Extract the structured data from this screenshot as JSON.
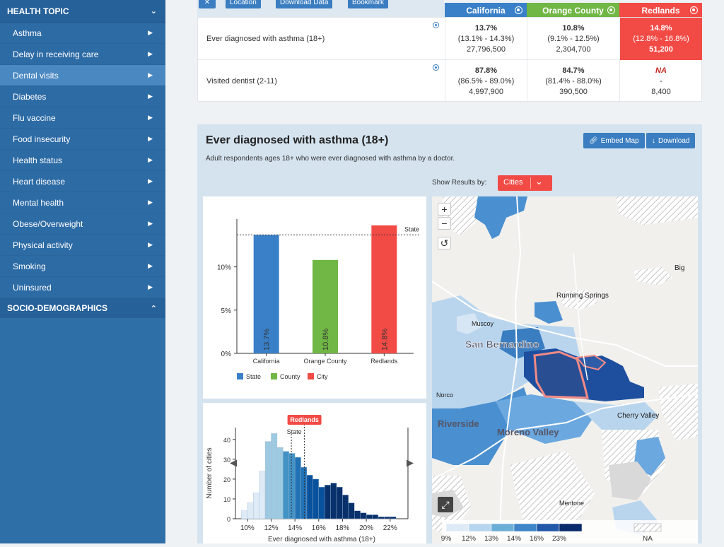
{
  "sidebar": {
    "header": "HEALTH TOPIC",
    "items": [
      {
        "label": "Asthma"
      },
      {
        "label": "Delay in receiving care"
      },
      {
        "label": "Dental visits",
        "active": true
      },
      {
        "label": "Diabetes"
      },
      {
        "label": "Flu vaccine"
      },
      {
        "label": "Food insecurity"
      },
      {
        "label": "Health status"
      },
      {
        "label": "Heart disease"
      },
      {
        "label": "Mental health"
      },
      {
        "label": "Obese/Overweight"
      },
      {
        "label": "Physical activity"
      },
      {
        "label": "Smoking"
      },
      {
        "label": "Uninsured"
      }
    ],
    "header2": "SOCIO-DEMOGRAPHICS"
  },
  "toolbar": {
    "close_label": "✕",
    "location_label": "Location",
    "download_data_label": "Download Data",
    "bookmark_label": "Bookmark"
  },
  "locations": [
    {
      "name": "California",
      "color": "#3a80c8"
    },
    {
      "name": "Orange County",
      "color": "#71b745"
    },
    {
      "name": "Redlands",
      "color": "#f24b46"
    }
  ],
  "compare_rows": [
    {
      "label": "Ever diagnosed with asthma (18+)",
      "cells": [
        {
          "value": "13.7%",
          "ci": "(13.1% - 14.3%)",
          "pop": "27,796,500"
        },
        {
          "value": "10.8%",
          "ci": "(9.1% - 12.5%)",
          "pop": "2,304,700"
        },
        {
          "value": "14.8%",
          "ci": "(12.8% - 16.8%)",
          "pop": "51,200"
        }
      ]
    },
    {
      "label": "Visited dentist (2-11)",
      "cells": [
        {
          "value": "87.8%",
          "ci": "(86.5% - 89.0%)",
          "pop": "4,997,900"
        },
        {
          "value": "84.7%",
          "ci": "(81.4% - 88.0%)",
          "pop": "390,500"
        },
        {
          "value": "NA",
          "ci": "-",
          "pop": "8,400"
        }
      ]
    }
  ],
  "panel": {
    "title": "Ever diagnosed with asthma (18+)",
    "description": "Adult respondents ages 18+ who were ever diagnosed with asthma by a doctor.",
    "embed_label": "Embed Map",
    "download_label": "Download",
    "show_results_label": "Show Results by:",
    "show_results_value": "Cities"
  },
  "chart_data": [
    {
      "type": "bar",
      "categories": [
        "California",
        "Orange County",
        "Redlands"
      ],
      "values": [
        13.7,
        10.8,
        14.8
      ],
      "value_labels": [
        "13.7%",
        "10.8%",
        "14.8%"
      ],
      "colors": [
        "#3a80c8",
        "#71b745",
        "#f24b46"
      ],
      "yticks": [
        "0%",
        "5%",
        "10%"
      ],
      "ylim": [
        0,
        15.2
      ],
      "reference_line": {
        "label": "State",
        "value": 13.7
      },
      "legend": [
        {
          "label": "State",
          "color": "#3a80c8"
        },
        {
          "label": "County",
          "color": "#71b745"
        },
        {
          "label": "City",
          "color": "#f24b46"
        }
      ],
      "legend_position": "bottom"
    },
    {
      "type": "bar",
      "xlabel": "Ever diagnosed with asthma (18+)",
      "ylabel": "Number of cities",
      "xticks": [
        "10%",
        "12%",
        "14%",
        "16%",
        "18%",
        "20%",
        "22%"
      ],
      "xlim": [
        9,
        23.5
      ],
      "yticks": [
        "0",
        "10",
        "20",
        "30",
        "40"
      ],
      "ylim": [
        0,
        46
      ],
      "bins": [
        {
          "x0": 9.0,
          "x1": 9.5,
          "count": 0
        },
        {
          "x0": 9.5,
          "x1": 10.0,
          "count": 4
        },
        {
          "x0": 10.0,
          "x1": 10.5,
          "count": 8
        },
        {
          "x0": 10.5,
          "x1": 11.0,
          "count": 13
        },
        {
          "x0": 11.0,
          "x1": 11.5,
          "count": 24
        },
        {
          "x0": 11.5,
          "x1": 12.0,
          "count": 39
        },
        {
          "x0": 12.0,
          "x1": 12.5,
          "count": 43
        },
        {
          "x0": 12.5,
          "x1": 13.0,
          "count": 36
        },
        {
          "x0": 13.0,
          "x1": 13.5,
          "count": 34
        },
        {
          "x0": 13.5,
          "x1": 14.0,
          "count": 33
        },
        {
          "x0": 14.0,
          "x1": 14.5,
          "count": 31
        },
        {
          "x0": 14.5,
          "x1": 15.0,
          "count": 26
        },
        {
          "x0": 15.0,
          "x1": 15.5,
          "count": 22
        },
        {
          "x0": 15.5,
          "x1": 16.0,
          "count": 20
        },
        {
          "x0": 16.0,
          "x1": 16.5,
          "count": 16
        },
        {
          "x0": 16.5,
          "x1": 17.0,
          "count": 17
        },
        {
          "x0": 17.0,
          "x1": 17.5,
          "count": 18
        },
        {
          "x0": 17.5,
          "x1": 18.0,
          "count": 16
        },
        {
          "x0": 18.0,
          "x1": 18.5,
          "count": 12
        },
        {
          "x0": 18.5,
          "x1": 19.0,
          "count": 8
        },
        {
          "x0": 19.0,
          "x1": 19.5,
          "count": 4
        },
        {
          "x0": 19.5,
          "x1": 20.0,
          "count": 3
        },
        {
          "x0": 20.0,
          "x1": 20.5,
          "count": 2
        },
        {
          "x0": 20.5,
          "x1": 21.0,
          "count": 2
        },
        {
          "x0": 21.0,
          "x1": 21.5,
          "count": 1
        },
        {
          "x0": 21.5,
          "x1": 22.0,
          "count": 1
        },
        {
          "x0": 22.0,
          "x1": 22.5,
          "count": 1
        }
      ],
      "markers": [
        {
          "label": "State",
          "value": 13.7
        },
        {
          "label": "Redlands",
          "value": 14.8
        }
      ],
      "bin_colors": [
        "#deebf7",
        "#9ecae1",
        "#4292c6",
        "#2171b5",
        "#08519c",
        "#08306b"
      ]
    }
  ],
  "map": {
    "place_labels": [
      "San Bernardino",
      "Riverside",
      "Moreno Valley",
      "Running Springs",
      "Big",
      "Cherry Valley",
      "Muscoy",
      "Norco",
      "Mentone"
    ],
    "legend_ticks": [
      "9%",
      "12%",
      "13%",
      "14%",
      "16%",
      "23%"
    ],
    "legend_colors": [
      "#deebf7",
      "#b7d5ee",
      "#6baed6",
      "#3f85c8",
      "#2158a8",
      "#0a2a6b"
    ],
    "na_label": "NA",
    "zoom_in": "+",
    "zoom_out": "−",
    "reset": "↺",
    "fullscreen": "⤢"
  }
}
